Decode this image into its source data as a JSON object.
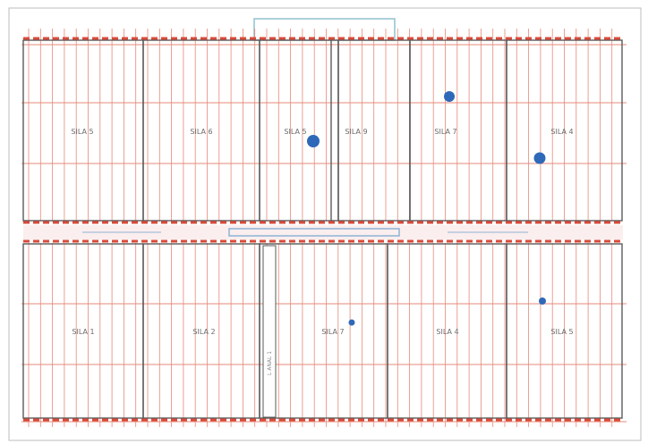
{
  "colors": {
    "grid_line": "#e58a78",
    "rack_line": "#5a5a5a",
    "aisle_band": "#d94a3a",
    "aisle_track": "#8cb4d6",
    "marker": "#2f68b8",
    "highlight_frame": "#8fc1cf",
    "background": "#ffffff"
  },
  "plan": {
    "upper_row": {
      "cells": [
        {
          "label": "SILA 5"
        },
        {
          "label": "SILA 6"
        },
        {
          "label": "SILA 5"
        },
        {
          "label": "SILA 9"
        },
        {
          "label": "SILA 7"
        },
        {
          "label": "SILA 4"
        }
      ]
    },
    "lower_row": {
      "cells": [
        {
          "label": "SILA 1"
        },
        {
          "label": "SILA 2"
        },
        {
          "label": "SILA 7"
        },
        {
          "label": "SILA 4"
        },
        {
          "label": "SILA 5"
        }
      ]
    },
    "vertical_note": "L ANAL 1",
    "marker_icon": "blue-dot-icon"
  }
}
